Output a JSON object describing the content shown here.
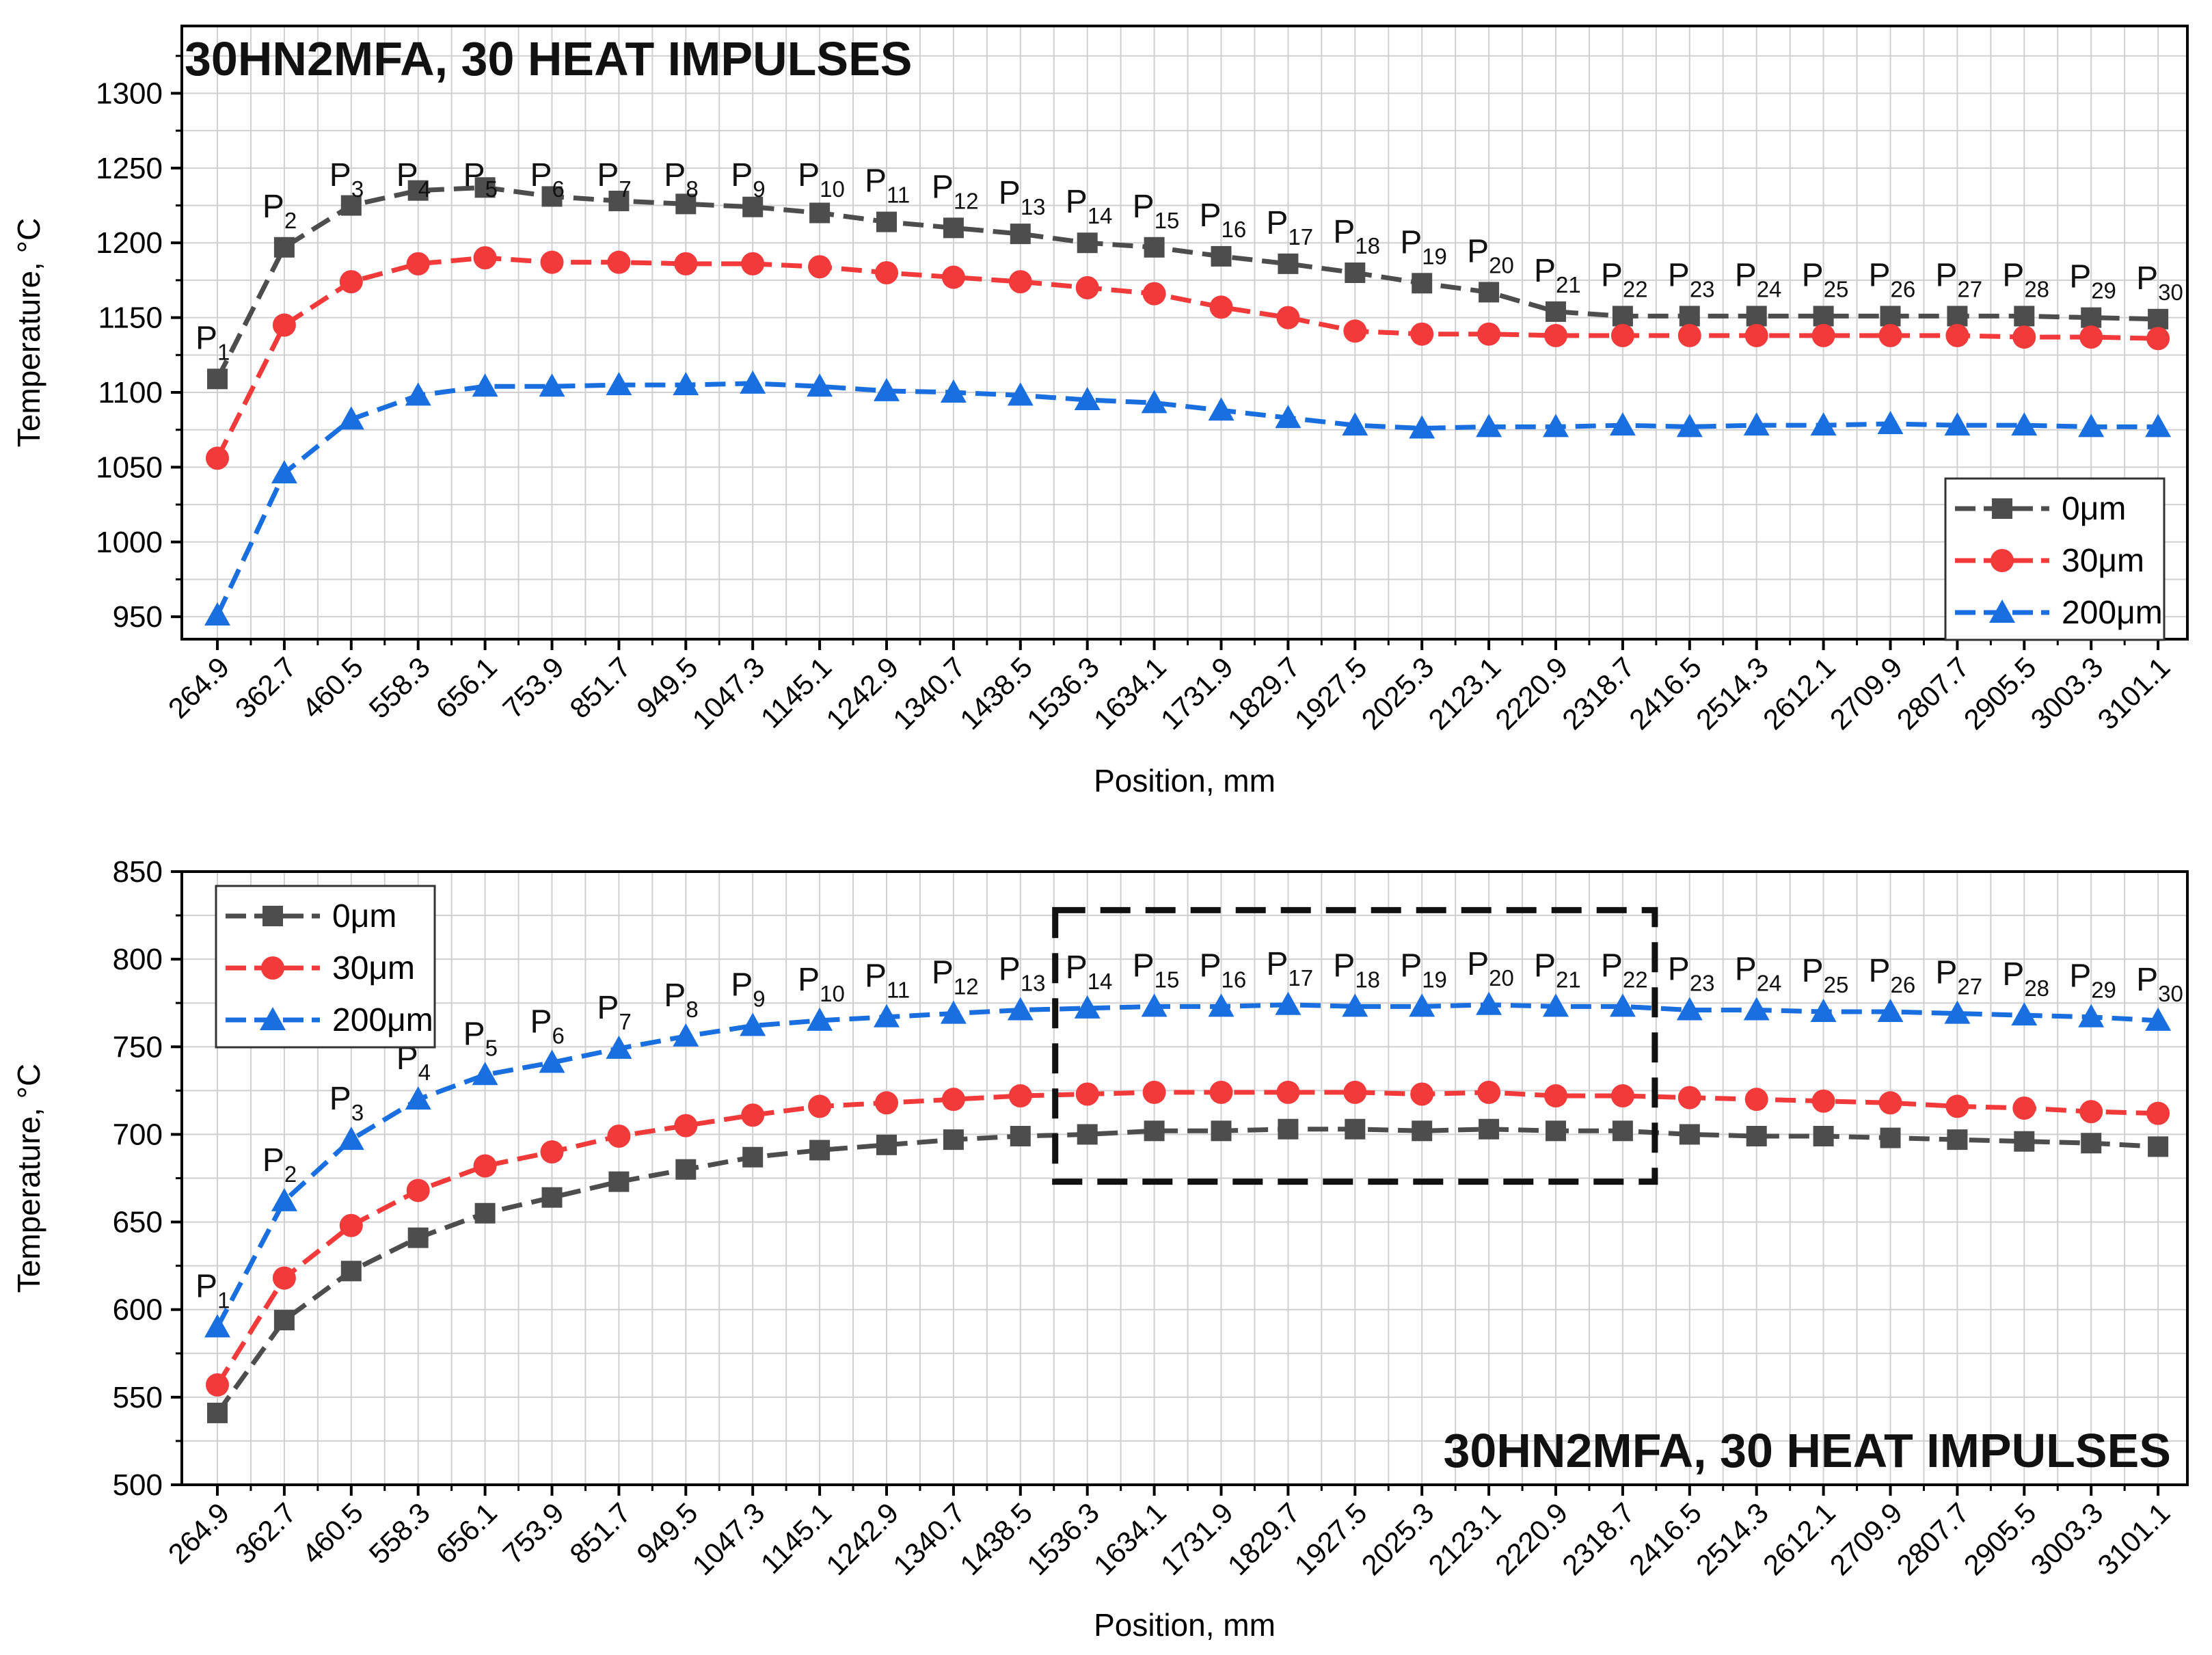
{
  "chart_data": [
    {
      "type": "line",
      "title": "30HN2MFA, 30 HEAT IMPULSES",
      "xlabel": "Position, mm",
      "ylabel": "Temperature, °C",
      "ylim": [
        935,
        1345
      ],
      "yticks": [
        950,
        1000,
        1050,
        1100,
        1150,
        1200,
        1250,
        1300
      ],
      "grid": true,
      "legend_position": "bottom-right",
      "categories": [
        "264.9",
        "362.7",
        "460.5",
        "558.3",
        "656.1",
        "753.9",
        "851.7",
        "949.5",
        "1047.3",
        "1145.1",
        "1242.9",
        "1340.7",
        "1438.5",
        "1536.3",
        "1634.1",
        "1731.9",
        "1829.7",
        "1927.5",
        "2025.3",
        "2123.1",
        "2220.9",
        "2318.7",
        "2416.5",
        "2514.3",
        "2612.1",
        "2709.9",
        "2807.7",
        "2905.5",
        "3003.3",
        "3101.1"
      ],
      "point_labels": [
        "P1",
        "P2",
        "P3",
        "P4",
        "P5",
        "P6",
        "P7",
        "P8",
        "P9",
        "P10",
        "P11",
        "P12",
        "P13",
        "P14",
        "P15",
        "P16",
        "P17",
        "P18",
        "P19",
        "P20",
        "P21",
        "P22",
        "P23",
        "P24",
        "P25",
        "P26",
        "P27",
        "P28",
        "P29",
        "P30"
      ],
      "series": [
        {
          "name": "0μm",
          "color": "#4d4d4d",
          "marker": "square",
          "values": [
            1109,
            1197,
            1225,
            1235,
            1237,
            1231,
            1228,
            1226,
            1224,
            1220,
            1214,
            1210,
            1206,
            1200,
            1197,
            1191,
            1186,
            1180,
            1173,
            1167,
            1154,
            1151,
            1151,
            1151,
            1151,
            1151,
            1151,
            1151,
            1150,
            1149
          ]
        },
        {
          "name": "30μm",
          "color": "#f23a3a",
          "marker": "circle",
          "values": [
            1056,
            1145,
            1174,
            1186,
            1190,
            1187,
            1187,
            1186,
            1186,
            1184,
            1180,
            1177,
            1174,
            1170,
            1166,
            1157,
            1150,
            1141,
            1139,
            1139,
            1138,
            1138,
            1138,
            1138,
            1138,
            1138,
            1138,
            1137,
            1137,
            1136
          ]
        },
        {
          "name": "200μm",
          "color": "#1a6fe0",
          "marker": "triangle",
          "values": [
            951,
            1046,
            1082,
            1098,
            1104,
            1104,
            1105,
            1105,
            1106,
            1104,
            1101,
            1100,
            1098,
            1095,
            1093,
            1088,
            1083,
            1078,
            1076,
            1077,
            1077,
            1078,
            1077,
            1078,
            1078,
            1079,
            1078,
            1078,
            1077,
            1077
          ]
        }
      ]
    },
    {
      "type": "line",
      "title": "30HN2MFA, 30 HEAT IMPULSES",
      "xlabel": "Position, mm",
      "ylabel": "Temperature, °C",
      "ylim": [
        500,
        850
      ],
      "yticks": [
        500,
        550,
        600,
        650,
        700,
        750,
        800,
        850
      ],
      "grid": true,
      "legend_position": "top-left",
      "highlight_box": {
        "from_point": "P14",
        "to_point": "P22",
        "y_range": [
          673,
          828
        ]
      },
      "categories": [
        "264.9",
        "362.7",
        "460.5",
        "558.3",
        "656.1",
        "753.9",
        "851.7",
        "949.5",
        "1047.3",
        "1145.1",
        "1242.9",
        "1340.7",
        "1438.5",
        "1536.3",
        "1634.1",
        "1731.9",
        "1829.7",
        "1927.5",
        "2025.3",
        "2123.1",
        "2220.9",
        "2318.7",
        "2416.5",
        "2514.3",
        "2612.1",
        "2709.9",
        "2807.7",
        "2905.5",
        "3003.3",
        "3101.1"
      ],
      "point_labels": [
        "P1",
        "P2",
        "P3",
        "P4",
        "P5",
        "P6",
        "P7",
        "P8",
        "P9",
        "P10",
        "P11",
        "P12",
        "P13",
        "P14",
        "P15",
        "P16",
        "P17",
        "P18",
        "P19",
        "P20",
        "P21",
        "P22",
        "P23",
        "P24",
        "P25",
        "P26",
        "P27",
        "P28",
        "P29",
        "P30"
      ],
      "series": [
        {
          "name": "0μm",
          "color": "#4d4d4d",
          "marker": "square",
          "values": [
            541,
            594,
            622,
            641,
            655,
            664,
            673,
            680,
            687,
            691,
            694,
            697,
            699,
            700,
            702,
            702,
            703,
            703,
            702,
            703,
            702,
            702,
            700,
            699,
            699,
            698,
            697,
            696,
            695,
            693
          ]
        },
        {
          "name": "30μm",
          "color": "#f23a3a",
          "marker": "circle",
          "values": [
            557,
            618,
            648,
            668,
            682,
            690,
            699,
            705,
            711,
            716,
            718,
            720,
            722,
            723,
            724,
            724,
            724,
            724,
            723,
            724,
            722,
            722,
            721,
            720,
            719,
            718,
            716,
            715,
            713,
            712
          ]
        },
        {
          "name": "200μm",
          "color": "#1a6fe0",
          "marker": "triangle",
          "values": [
            590,
            662,
            697,
            720,
            734,
            741,
            749,
            756,
            762,
            765,
            767,
            769,
            771,
            772,
            773,
            773,
            774,
            773,
            773,
            774,
            773,
            773,
            771,
            771,
            770,
            770,
            769,
            768,
            767,
            765
          ]
        }
      ]
    }
  ]
}
